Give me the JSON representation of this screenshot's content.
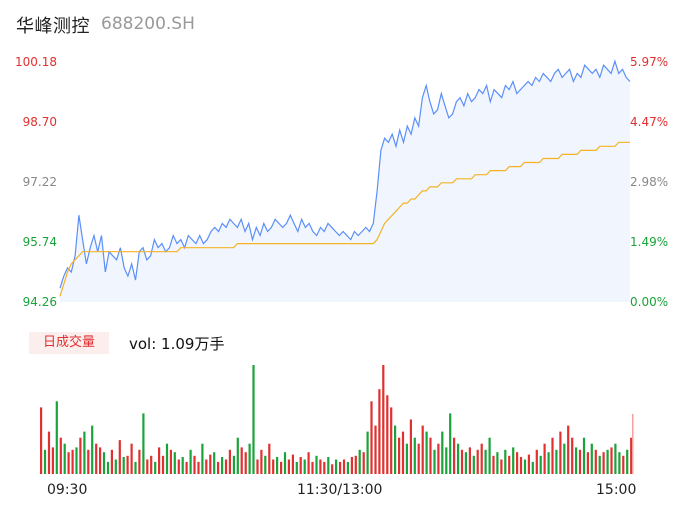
{
  "header": {
    "name": "华峰测控",
    "code": "688200.SH"
  },
  "volume_panel": {
    "badge": "日成交量",
    "label": "vol: 1.09万手"
  },
  "colors": {
    "price_line": "#5b8ff9",
    "avg_line": "#f5b324",
    "up": "#e03030",
    "down": "#1aa33a",
    "neutral": "#888888"
  },
  "chart_data": [
    {
      "type": "line",
      "panel": "price",
      "x_ticks": [
        "09:30",
        "11:30/13:00",
        "15:00"
      ],
      "y_left_ticks": [
        "100.18",
        "98.70",
        "97.22",
        "95.74",
        "94.26"
      ],
      "y_right_ticks": [
        "5.97%",
        "4.47%",
        "2.98%",
        "1.49%",
        "0.00%"
      ],
      "ylim": [
        94.26,
        100.18
      ],
      "series": [
        {
          "key": "price",
          "values": [
            94.6,
            94.9,
            95.1,
            95.0,
            95.4,
            96.4,
            95.8,
            95.2,
            95.6,
            95.9,
            95.5,
            95.9,
            95.0,
            95.5,
            95.4,
            95.3,
            95.6,
            95.1,
            94.9,
            95.2,
            94.8,
            95.5,
            95.6,
            95.3,
            95.4,
            95.8,
            95.6,
            95.7,
            95.5,
            95.6,
            95.9,
            95.7,
            95.8,
            95.6,
            95.9,
            95.8,
            95.7,
            95.9,
            95.7,
            95.8,
            96.0,
            96.1,
            96.0,
            96.2,
            96.1,
            96.3,
            96.2,
            96.1,
            96.3,
            96.0,
            96.2,
            95.8,
            96.1,
            95.9,
            96.2,
            96.0,
            96.1,
            96.3,
            96.2,
            96.1,
            96.2,
            96.4,
            96.2,
            96.0,
            96.3,
            96.1,
            96.2,
            96.0,
            95.9,
            96.1,
            96.0,
            96.2,
            96.1,
            96.0,
            95.9,
            96.0,
            95.9,
            95.8,
            96.0,
            95.9,
            96.0,
            96.1,
            96.0,
            96.2,
            97.0,
            98.0,
            98.3,
            98.2,
            98.4,
            98.1,
            98.5,
            98.2,
            98.6,
            98.4,
            98.8,
            98.6,
            99.3,
            99.6,
            99.2,
            98.9,
            99.0,
            99.4,
            99.1,
            98.8,
            98.9,
            99.2,
            99.3,
            99.1,
            99.4,
            99.2,
            99.3,
            99.5,
            99.4,
            99.6,
            99.2,
            99.5,
            99.4,
            99.3,
            99.6,
            99.5,
            99.7,
            99.4,
            99.5,
            99.6,
            99.7,
            99.6,
            99.8,
            99.7,
            99.9,
            99.8,
            99.7,
            99.9,
            100.0,
            99.8,
            99.9,
            100.0,
            99.7,
            99.9,
            99.8,
            100.1,
            100.0,
            99.9,
            100.0,
            99.8,
            100.1,
            100.0,
            99.9,
            100.2,
            99.9,
            100.0,
            99.8,
            99.7
          ],
          "color": "#5b8ff9"
        },
        {
          "key": "avg",
          "values": [
            94.4,
            94.7,
            95.0,
            95.2,
            95.3,
            95.4,
            95.5,
            95.5,
            95.5,
            95.5,
            95.5,
            95.5,
            95.5,
            95.5,
            95.5,
            95.5,
            95.5,
            95.5,
            95.5,
            95.5,
            95.5,
            95.5,
            95.5,
            95.5,
            95.5,
            95.5,
            95.5,
            95.5,
            95.5,
            95.5,
            95.5,
            95.5,
            95.6,
            95.6,
            95.6,
            95.6,
            95.6,
            95.6,
            95.6,
            95.6,
            95.6,
            95.6,
            95.6,
            95.6,
            95.6,
            95.6,
            95.6,
            95.7,
            95.7,
            95.7,
            95.7,
            95.7,
            95.7,
            95.7,
            95.7,
            95.7,
            95.7,
            95.7,
            95.7,
            95.7,
            95.7,
            95.7,
            95.7,
            95.7,
            95.7,
            95.7,
            95.7,
            95.7,
            95.7,
            95.7,
            95.7,
            95.7,
            95.7,
            95.7,
            95.7,
            95.7,
            95.7,
            95.7,
            95.7,
            95.7,
            95.7,
            95.7,
            95.7,
            95.7,
            95.8,
            96.0,
            96.2,
            96.3,
            96.4,
            96.5,
            96.6,
            96.7,
            96.7,
            96.8,
            96.8,
            96.9,
            97.0,
            97.0,
            97.1,
            97.1,
            97.1,
            97.2,
            97.2,
            97.2,
            97.2,
            97.3,
            97.3,
            97.3,
            97.3,
            97.3,
            97.4,
            97.4,
            97.4,
            97.4,
            97.5,
            97.5,
            97.5,
            97.5,
            97.5,
            97.6,
            97.6,
            97.6,
            97.6,
            97.7,
            97.7,
            97.7,
            97.7,
            97.7,
            97.8,
            97.8,
            97.8,
            97.8,
            97.8,
            97.9,
            97.9,
            97.9,
            97.9,
            97.9,
            98.0,
            98.0,
            98.0,
            98.0,
            98.0,
            98.1,
            98.1,
            98.1,
            98.1,
            98.1,
            98.2,
            98.2,
            98.2,
            98.2
          ],
          "color": "#f5b324"
        }
      ]
    },
    {
      "type": "bar",
      "panel": "volume",
      "values": [
        55,
        20,
        35,
        22,
        60,
        30,
        25,
        18,
        20,
        22,
        30,
        35,
        20,
        40,
        25,
        22,
        18,
        10,
        20,
        12,
        28,
        14,
        15,
        25,
        10,
        20,
        50,
        12,
        15,
        10,
        22,
        15,
        25,
        20,
        18,
        12,
        14,
        10,
        20,
        15,
        10,
        25,
        12,
        16,
        18,
        10,
        14,
        12,
        20,
        15,
        30,
        22,
        18,
        25,
        90,
        12,
        20,
        15,
        25,
        12,
        14,
        10,
        18,
        12,
        16,
        10,
        14,
        12,
        18,
        10,
        15,
        12,
        10,
        14,
        8,
        12,
        10,
        12,
        10,
        14,
        15,
        20,
        18,
        35,
        60,
        40,
        70,
        90,
        65,
        55,
        40,
        30,
        35,
        25,
        45,
        30,
        25,
        40,
        35,
        30,
        20,
        25,
        35,
        22,
        50,
        30,
        25,
        20,
        18,
        22,
        15,
        20,
        25,
        20,
        30,
        15,
        18,
        12,
        20,
        15,
        22,
        18,
        14,
        12,
        16,
        10,
        20,
        15,
        25,
        18,
        30,
        20,
        35,
        25,
        40,
        30,
        22,
        20,
        30,
        18,
        25,
        20,
        15,
        18,
        20,
        22,
        25,
        18,
        15,
        20,
        30
      ],
      "colors": [
        "r",
        "g",
        "r",
        "r",
        "g",
        "r",
        "g",
        "r",
        "r",
        "g",
        "r",
        "g",
        "r",
        "g",
        "r",
        "r",
        "g",
        "g",
        "r",
        "g",
        "r",
        "g",
        "r",
        "r",
        "g",
        "r",
        "g",
        "r",
        "r",
        "g",
        "r",
        "r",
        "g",
        "r",
        "g",
        "r",
        "g",
        "r",
        "g",
        "r",
        "r",
        "g",
        "r",
        "r",
        "g",
        "r",
        "g",
        "r",
        "r",
        "g",
        "g",
        "r",
        "r",
        "g",
        "g",
        "r",
        "r",
        "g",
        "r",
        "r",
        "g",
        "r",
        "g",
        "r",
        "r",
        "g",
        "r",
        "g",
        "r",
        "r",
        "g",
        "r",
        "r",
        "g",
        "r",
        "g",
        "r",
        "r",
        "g",
        "r",
        "r",
        "g",
        "r",
        "g",
        "r",
        "r",
        "r",
        "r",
        "r",
        "r",
        "g",
        "r",
        "r",
        "g",
        "r",
        "g",
        "r",
        "r",
        "g",
        "r",
        "g",
        "r",
        "g",
        "g",
        "g",
        "r",
        "g",
        "r",
        "g",
        "r",
        "g",
        "r",
        "r",
        "g",
        "g",
        "r",
        "g",
        "r",
        "g",
        "r",
        "g",
        "r",
        "r",
        "g",
        "r",
        "g",
        "r",
        "g",
        "r",
        "g",
        "r",
        "g",
        "r",
        "g",
        "r",
        "r",
        "g",
        "r",
        "g",
        "r",
        "g",
        "r",
        "g",
        "r",
        "g",
        "r",
        "g",
        "g",
        "r",
        "g",
        "r"
      ]
    }
  ]
}
